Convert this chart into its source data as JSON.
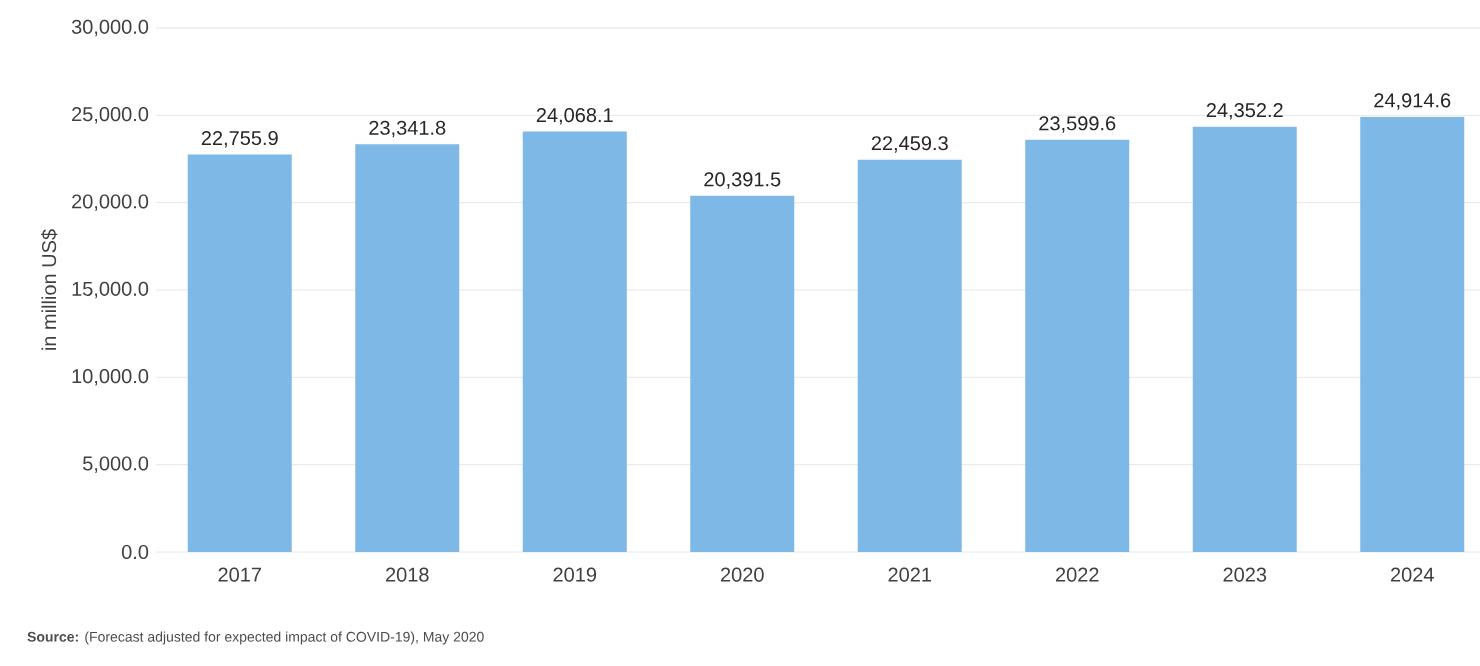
{
  "chart_data": {
    "type": "bar",
    "ylabel": "in million US$",
    "categories": [
      "2017",
      "2018",
      "2019",
      "2020",
      "2021",
      "2022",
      "2023",
      "2024"
    ],
    "values": [
      22755.9,
      23341.8,
      24068.1,
      20391.5,
      22459.3,
      23599.6,
      24352.2,
      24914.6
    ],
    "value_labels": [
      "22,755.9",
      "23,341.8",
      "24,068.1",
      "20,391.5",
      "22,459.3",
      "23,599.6",
      "24,352.2",
      "24,914.6"
    ],
    "color": "#7db8e6",
    "ylim": [
      0,
      30000
    ],
    "yticks": [
      {
        "value": 0,
        "label": "0.0"
      },
      {
        "value": 5000,
        "label": "5,000.0"
      },
      {
        "value": 10000,
        "label": "10,000.0"
      },
      {
        "value": 15000,
        "label": "15,000.0"
      },
      {
        "value": 20000,
        "label": "20,000.0"
      },
      {
        "value": 25000,
        "label": "25,000.0"
      },
      {
        "value": 30000,
        "label": "30,000.0"
      }
    ],
    "grid": "y",
    "annotations": [
      "**Source:** (Forecast adjusted for expected impact of COVID-19), May 2020"
    ]
  }
}
